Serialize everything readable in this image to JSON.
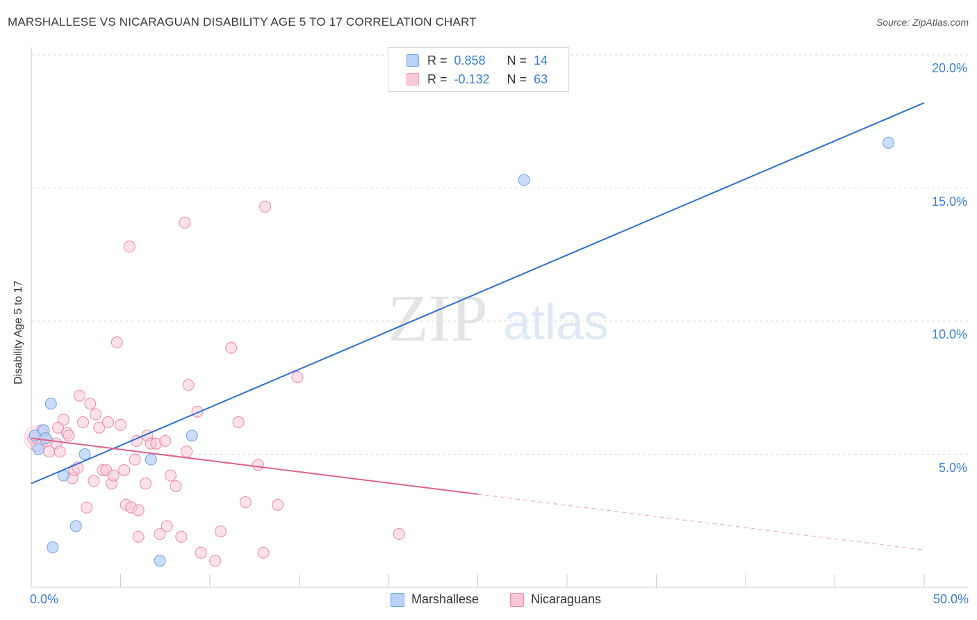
{
  "header": {
    "title": "MARSHALLESE VS NICARAGUAN DISABILITY AGE 5 TO 17 CORRELATION CHART",
    "source": "Source: ZipAtlas.com"
  },
  "watermark": {
    "zip": "ZIP",
    "atlas": "atlas"
  },
  "legend_top": {
    "rows": [
      {
        "r_label": "R =",
        "r_value": "0.858",
        "n_label": "N =",
        "n_value": "14",
        "color": "#7aaaf0"
      },
      {
        "r_label": "R =",
        "r_value": "-0.132",
        "n_label": "N =",
        "n_value": "63",
        "color": "#f29bb8"
      }
    ]
  },
  "colors": {
    "blue_fill": "#b8d2f7",
    "blue_stroke": "#6f9fe6",
    "blue_line": "#2b6fd0",
    "pink_fill": "#f9c8d8",
    "pink_stroke": "#e889a9",
    "pink_line": "#e0608f",
    "axis_text": "#3b7dd8",
    "grid": "#d9d9d9"
  },
  "chart_data": {
    "type": "scatter",
    "title": "MARSHALLESE VS NICARAGUAN DISABILITY AGE 5 TO 17 CORRELATION CHART",
    "xlabel": "",
    "ylabel": "Disability Age 5 to 17",
    "xlim": [
      0,
      50
    ],
    "ylim": [
      0,
      20
    ],
    "x_tick_labels": [
      {
        "value": 0,
        "label": "0.0%"
      },
      {
        "value": 50,
        "label": "50.0%"
      }
    ],
    "y_tick_labels": [
      {
        "value": 5,
        "label": "5.0%"
      },
      {
        "value": 10,
        "label": "10.0%"
      },
      {
        "value": 15,
        "label": "15.0%"
      },
      {
        "value": 20,
        "label": "20.0%"
      }
    ],
    "legend": [
      "Marshallese",
      "Nicaraguans"
    ],
    "series": [
      {
        "name": "Marshallese",
        "r": 0.858,
        "n": 14,
        "points": [
          [
            0.2,
            5.7
          ],
          [
            0.4,
            5.2
          ],
          [
            0.7,
            5.9
          ],
          [
            0.8,
            5.6
          ],
          [
            1.1,
            6.9
          ],
          [
            1.8,
            4.2
          ],
          [
            2.5,
            2.3
          ],
          [
            3.0,
            5.0
          ],
          [
            1.2,
            1.5
          ],
          [
            6.7,
            4.8
          ],
          [
            7.2,
            1.0
          ],
          [
            9.0,
            5.7
          ],
          [
            27.6,
            15.3
          ],
          [
            48.0,
            16.7
          ]
        ],
        "trend": {
          "x0": 0,
          "y0": 3.9,
          "x1": 50,
          "y1": 18.2
        }
      },
      {
        "name": "Nicaraguans",
        "r": -0.132,
        "n": 63,
        "points": [
          [
            0.1,
            5.6
          ],
          [
            0.3,
            5.3
          ],
          [
            0.6,
            5.9
          ],
          [
            0.9,
            5.5
          ],
          [
            1.0,
            5.1
          ],
          [
            1.4,
            5.4
          ],
          [
            1.6,
            5.1
          ],
          [
            1.8,
            6.3
          ],
          [
            2.0,
            5.8
          ],
          [
            2.1,
            5.7
          ],
          [
            2.3,
            4.1
          ],
          [
            2.4,
            4.4
          ],
          [
            2.6,
            4.5
          ],
          [
            2.7,
            7.2
          ],
          [
            2.9,
            6.2
          ],
          [
            3.1,
            3.0
          ],
          [
            3.3,
            6.9
          ],
          [
            3.6,
            6.5
          ],
          [
            3.8,
            6.0
          ],
          [
            4.0,
            4.4
          ],
          [
            4.2,
            4.4
          ],
          [
            4.3,
            6.2
          ],
          [
            4.5,
            3.9
          ],
          [
            4.6,
            4.2
          ],
          [
            4.8,
            9.2
          ],
          [
            5.0,
            6.1
          ],
          [
            5.2,
            4.4
          ],
          [
            5.3,
            3.1
          ],
          [
            5.5,
            12.8
          ],
          [
            5.6,
            3.0
          ],
          [
            5.8,
            4.8
          ],
          [
            6.0,
            2.9
          ],
          [
            6.0,
            1.9
          ],
          [
            6.4,
            3.9
          ],
          [
            6.5,
            5.7
          ],
          [
            6.7,
            5.4
          ],
          [
            7.0,
            5.4
          ],
          [
            7.2,
            2.0
          ],
          [
            7.5,
            5.5
          ],
          [
            7.6,
            2.3
          ],
          [
            8.1,
            3.8
          ],
          [
            8.4,
            1.9
          ],
          [
            8.7,
            5.1
          ],
          [
            8.8,
            7.6
          ],
          [
            9.3,
            6.6
          ],
          [
            9.5,
            1.3
          ],
          [
            8.6,
            13.7
          ],
          [
            10.3,
            1.0
          ],
          [
            10.6,
            2.1
          ],
          [
            11.2,
            9.0
          ],
          [
            11.6,
            6.2
          ],
          [
            12.0,
            3.2
          ],
          [
            12.7,
            4.6
          ],
          [
            13.0,
            1.3
          ],
          [
            13.1,
            14.3
          ],
          [
            13.8,
            3.1
          ],
          [
            14.9,
            7.9
          ],
          [
            0.5,
            5.5
          ],
          [
            1.5,
            6.0
          ],
          [
            3.5,
            4.0
          ],
          [
            20.6,
            2.0
          ],
          [
            5.9,
            5.5
          ],
          [
            7.8,
            4.2
          ]
        ],
        "trend": {
          "x0": 0,
          "y0": 5.6,
          "x1": 25,
          "y1": 3.5,
          "dash_x1": 50,
          "dash_y1": 1.4
        }
      }
    ]
  }
}
